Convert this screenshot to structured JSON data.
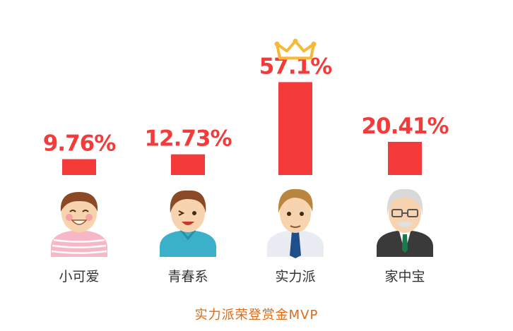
{
  "chart_data": {
    "type": "bar",
    "categories": [
      "小可爱",
      "青春系",
      "实力派",
      "家中宝"
    ],
    "values": [
      9.76,
      12.73,
      57.1,
      20.41
    ],
    "value_labels": [
      "9.76%",
      "12.73%",
      "57.1%",
      "20.41%"
    ],
    "unit": "%",
    "ylim": [
      0,
      60
    ],
    "grid": false,
    "winner_index": 2,
    "bar_color": "#f53a3a",
    "label_color": "#f53a3a",
    "category_label_color": "#333333",
    "caption_color": "#e06a12",
    "crown_color": "#f7b833",
    "avatar_icons": [
      "girl-avatar-icon",
      "youth-avatar-icon",
      "professional-avatar-icon",
      "grandpa-avatar-icon"
    ]
  },
  "caption": "实力派荣登赏金MVP"
}
